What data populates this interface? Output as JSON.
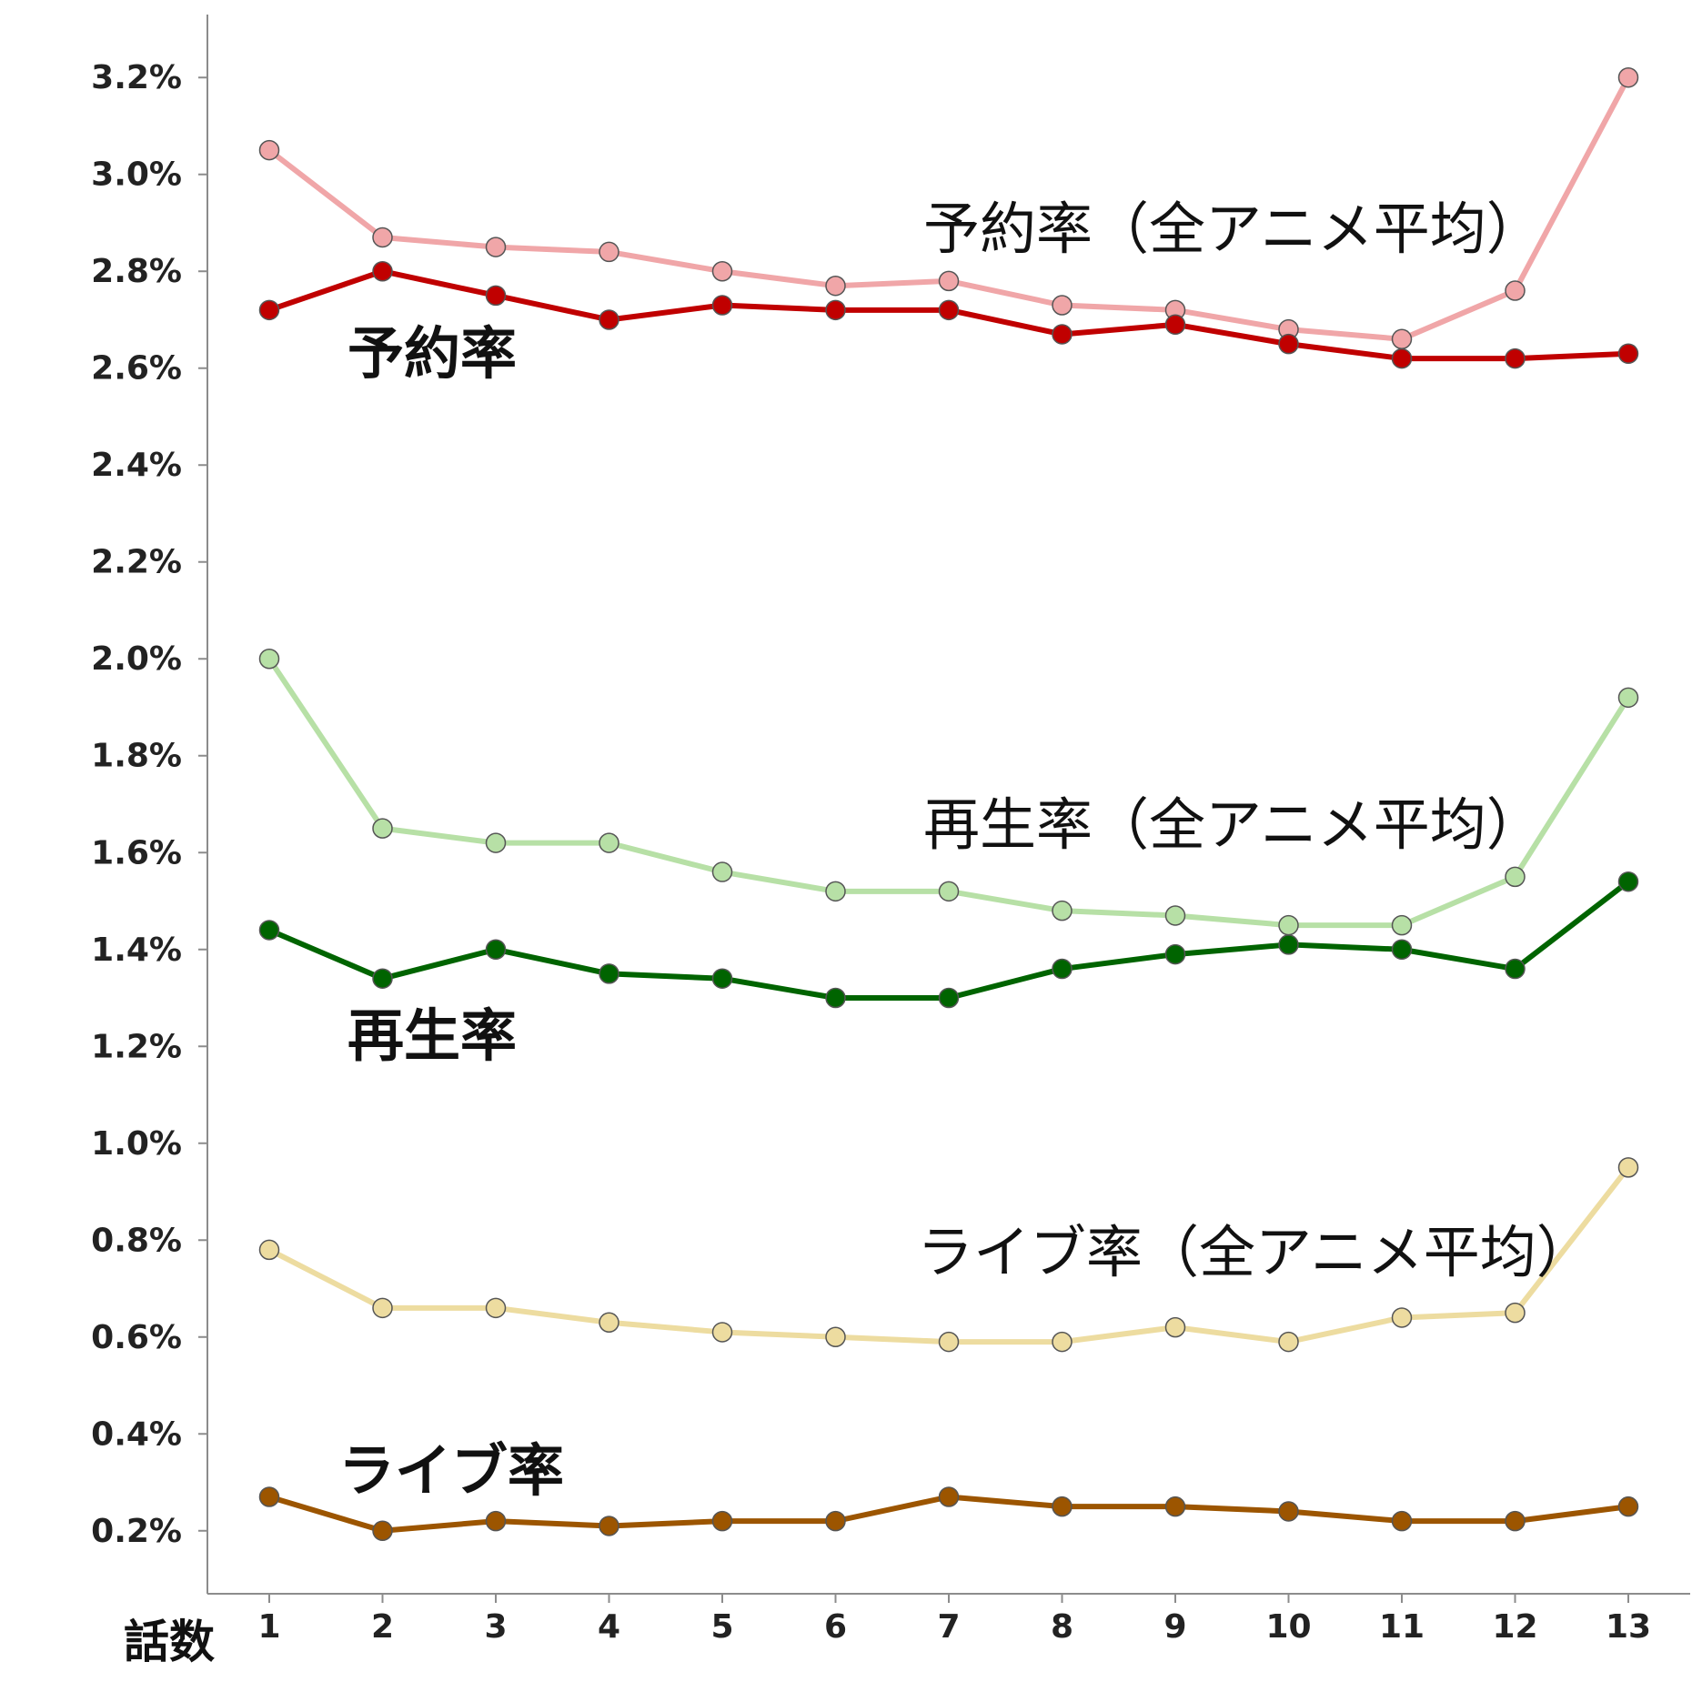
{
  "chart_data": {
    "type": "line",
    "xlabel": "話数",
    "ylabel": "",
    "x": [
      1,
      2,
      3,
      4,
      5,
      6,
      7,
      8,
      9,
      10,
      11,
      12,
      13
    ],
    "ylim": [
      0.07,
      3.33
    ],
    "yticks": [
      0.2,
      0.4,
      0.6,
      0.8,
      1.0,
      1.2,
      1.4,
      1.6,
      1.8,
      2.0,
      2.2,
      2.4,
      2.6,
      2.8,
      3.0,
      3.2
    ],
    "ytick_labels": [
      "0.2%",
      "0.4%",
      "0.6%",
      "0.8%",
      "1.0%",
      "1.2%",
      "1.4%",
      "1.6%",
      "1.8%",
      "2.0%",
      "2.2%",
      "2.4%",
      "2.6%",
      "2.8%",
      "3.0%",
      "3.2%"
    ],
    "xtick_labels": [
      "1",
      "2",
      "3",
      "4",
      "5",
      "6",
      "7",
      "8",
      "9",
      "10",
      "11",
      "12",
      "13"
    ],
    "grid": false,
    "legend": "none",
    "series": [
      {
        "key": "reservation_avg",
        "name": "予約率（全アニメ平均）",
        "color": "#f0a6a8",
        "values": [
          3.05,
          2.87,
          2.85,
          2.84,
          2.8,
          2.77,
          2.78,
          2.73,
          2.72,
          2.68,
          2.66,
          2.76,
          3.2
        ]
      },
      {
        "key": "reservation",
        "name": "予約率",
        "color": "#c00000",
        "values": [
          2.72,
          2.8,
          2.75,
          2.7,
          2.73,
          2.72,
          2.72,
          2.67,
          2.69,
          2.65,
          2.62,
          2.62,
          2.63
        ]
      },
      {
        "key": "playback_avg",
        "name": "再生率（全アニメ平均）",
        "color": "#b7e0a6",
        "values": [
          2.0,
          1.65,
          1.62,
          1.62,
          1.56,
          1.52,
          1.52,
          1.48,
          1.47,
          1.45,
          1.45,
          1.55,
          1.92
        ]
      },
      {
        "key": "playback",
        "name": "再生率",
        "color": "#006400",
        "values": [
          1.44,
          1.34,
          1.4,
          1.35,
          1.34,
          1.3,
          1.3,
          1.36,
          1.39,
          1.41,
          1.4,
          1.36,
          1.54
        ]
      },
      {
        "key": "live_avg",
        "name": "ライブ率（全アニメ平均）",
        "color": "#eddca0",
        "values": [
          0.78,
          0.66,
          0.66,
          0.63,
          0.61,
          0.6,
          0.59,
          0.59,
          0.62,
          0.59,
          0.64,
          0.65,
          0.95
        ]
      },
      {
        "key": "live",
        "name": "ライブ率",
        "color": "#9c5500",
        "values": [
          0.27,
          0.2,
          0.22,
          0.21,
          0.22,
          0.22,
          0.27,
          0.25,
          0.25,
          0.24,
          0.22,
          0.22,
          0.25
        ]
      }
    ],
    "annotations": [
      {
        "key": "reservation_avg",
        "text": "予約率（全アニメ平均）",
        "style": "avg"
      },
      {
        "key": "reservation",
        "text": "予約率",
        "style": "main"
      },
      {
        "key": "playback_avg",
        "text": "再生率（全アニメ平均）",
        "style": "avg"
      },
      {
        "key": "playback",
        "text": "再生率",
        "style": "main"
      },
      {
        "key": "live_avg",
        "text": "ライブ率（全アニメ平均）",
        "style": "avg"
      },
      {
        "key": "live",
        "text": "ライブ率",
        "style": "main"
      }
    ]
  }
}
